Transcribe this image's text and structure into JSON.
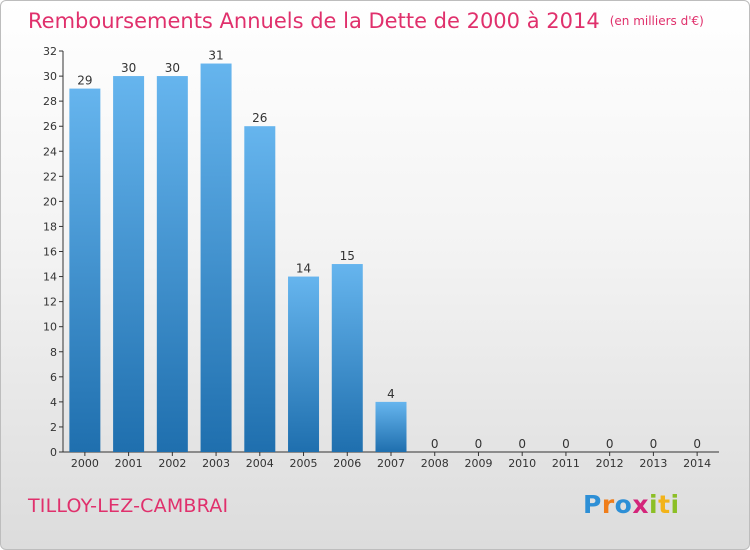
{
  "title": "Remboursements Annuels de la Dette de 2000 à 2014",
  "title_unit": "(en milliers d'€)",
  "commune": "TILLOY-LEZ-CAMBRAI",
  "logo": {
    "letters": [
      "P",
      "r",
      "o",
      "x",
      "i",
      "t",
      "i"
    ],
    "colors": [
      "#2d8fd6",
      "#ef7d1a",
      "#2d8fd6",
      "#d4257a",
      "#8cbf26",
      "#f2b319",
      "#8cbf26"
    ]
  },
  "colors": {
    "title": "#e0306c",
    "bar_top": "#66b5ee",
    "bar_bottom": "#1f6fae"
  },
  "chart_data": {
    "type": "bar",
    "categories": [
      "2000",
      "2001",
      "2002",
      "2003",
      "2004",
      "2005",
      "2006",
      "2007",
      "2008",
      "2009",
      "2010",
      "2011",
      "2012",
      "2013",
      "2014"
    ],
    "values": [
      29,
      30,
      30,
      31,
      26,
      14,
      15,
      4,
      0,
      0,
      0,
      0,
      0,
      0,
      0
    ],
    "yticks": [
      0,
      2,
      4,
      6,
      8,
      10,
      12,
      14,
      16,
      18,
      20,
      22,
      24,
      26,
      28,
      30,
      32
    ],
    "ylim": [
      0,
      32
    ],
    "grid": false
  }
}
